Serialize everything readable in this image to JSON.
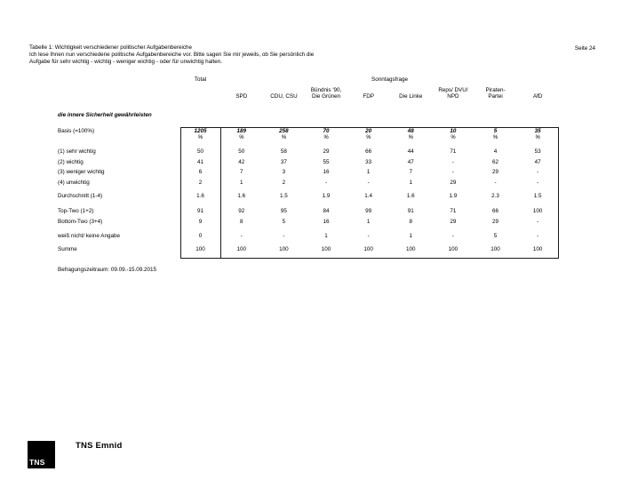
{
  "page": {
    "title_line1": "Tabelle 1: Wichtigkeit verschiedener politischer Aufgabenbereiche",
    "title_line2": "Ich lese Ihnen nun verschiedene politische Aufgabenbereiche vor. Bitte sagen Sie mir jeweils, ob Sie persönlich die",
    "title_line3": "Aufgabe für sehr wichtig - wichtig - weniger wichtig - oder für unwichtig halten.",
    "page_label": "Seite 24"
  },
  "table": {
    "group_headers": {
      "total": "Total",
      "sonntagsfrage": "Sonntagsfrage"
    },
    "party_columns": [
      [
        "SPD"
      ],
      [
        "CDU, CSU"
      ],
      [
        "Bündnis '90,",
        "Die Grünen"
      ],
      [
        "FDP"
      ],
      [
        "Die Linke"
      ],
      [
        "Reps/ DVU/",
        "NPD"
      ],
      [
        "Piraten-",
        "Partei"
      ],
      [
        "AfD"
      ]
    ],
    "section_title": "die innere Sicherheit gewährleisten",
    "basis_label": "Basis (=100%)",
    "basis_values": [
      "1205",
      "189",
      "258",
      "70",
      "20",
      "48",
      "10",
      "5",
      "35"
    ],
    "percent_sign": "%",
    "rows": [
      {
        "label": "(1) sehr wichtig",
        "values": [
          "50",
          "50",
          "58",
          "29",
          "66",
          "44",
          "71",
          "4",
          "53"
        ]
      },
      {
        "label": "(2) wichtig",
        "values": [
          "41",
          "42",
          "37",
          "55",
          "33",
          "47",
          "-",
          "62",
          "47"
        ]
      },
      {
        "label": "(3) weniger wichtig",
        "values": [
          "6",
          "7",
          "3",
          "16",
          "1",
          "7",
          "-",
          "29",
          "-"
        ]
      },
      {
        "label": "(4) unwichtig",
        "values": [
          "2",
          "1",
          "2",
          "-",
          "-",
          "1",
          "29",
          "-",
          "-"
        ]
      },
      {
        "label": "Durchschnitt (1-4)",
        "values": [
          "1.6",
          "1.6",
          "1.5",
          "1.9",
          "1.4",
          "1.6",
          "1.9",
          "2.3",
          "1.5"
        ]
      },
      {
        "label": "Top-Two (1+2)",
        "values": [
          "91",
          "92",
          "95",
          "84",
          "99",
          "91",
          "71",
          "66",
          "100"
        ]
      },
      {
        "label": "Bottom-Two (3+4)",
        "values": [
          "9",
          "8",
          "5",
          "16",
          "1",
          "8",
          "29",
          "29",
          "-"
        ]
      },
      {
        "label": "weiß nicht/ keine Angabe",
        "values": [
          "0",
          "-",
          "-",
          "1",
          "-",
          "1",
          "-",
          "5",
          "-"
        ]
      },
      {
        "label": "Summe",
        "values": [
          "100",
          "100",
          "100",
          "100",
          "100",
          "100",
          "100",
          "100",
          "100"
        ]
      }
    ],
    "footnote": "Befragungszeitraum: 09.09.-15.09.2015"
  },
  "footer": {
    "logo_text": "TNS",
    "brand": "TNS Emnid"
  }
}
